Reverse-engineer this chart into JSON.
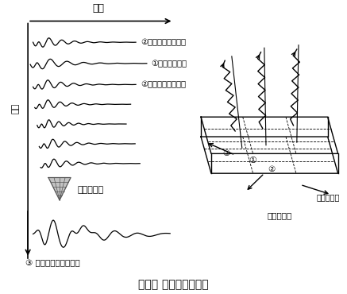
{
  "title": "図－１ 地震波の作り方",
  "ylabel": "距離",
  "xlabel_top": "時間",
  "label1": "②震源の隣の地震波",
  "label2": "①震源の地震波",
  "label3": "②震源の隣の地震波",
  "arrow_label": "重ね合わせ",
  "bottom_label": "③ 大地震の地震動波形",
  "fault_label": "断層モデル",
  "propagation_label": "破壊の進行",
  "bg_color": "#ffffff",
  "line_color": "#000000"
}
